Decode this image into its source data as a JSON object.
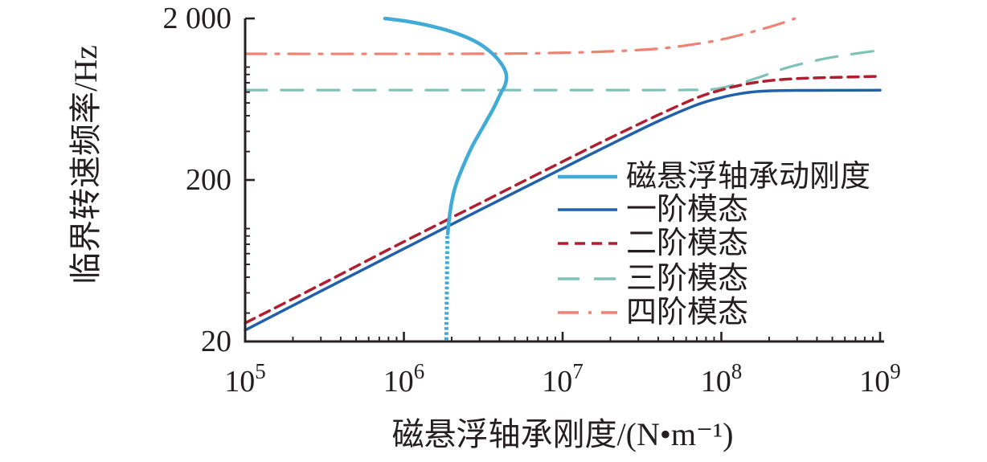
{
  "chart_data": {
    "type": "line",
    "title": "",
    "xlabel": "磁悬浮轴承刚度/(N•m⁻¹)",
    "ylabel": "临界转速频率/Hz",
    "grid": false,
    "legend_position": "center-right, no frame",
    "x_axis": {
      "scale": "log",
      "min": 100000.0,
      "max": 1000000000.0,
      "ticks": [
        {
          "value": 100000.0,
          "base": "10",
          "exp": "5"
        },
        {
          "value": 1000000.0,
          "base": "10",
          "exp": "6"
        },
        {
          "value": 10000000.0,
          "base": "10",
          "exp": "7"
        },
        {
          "value": 100000000.0,
          "base": "10",
          "exp": "8"
        },
        {
          "value": 1000000000.0,
          "base": "10",
          "exp": "9"
        }
      ]
    },
    "y_axis": {
      "scale": "log",
      "min": 20,
      "max": 2000,
      "ticks": [
        {
          "value": 2000,
          "label": "2 000"
        },
        {
          "value": 200,
          "label": "200"
        },
        {
          "value": 20,
          "label": "20"
        }
      ]
    },
    "axis_color": "#262223",
    "series": [
      {
        "id": "mode-4",
        "name": "四阶模态",
        "color": "#EF8272",
        "style": "dash-dot",
        "width": 3.2,
        "points": [
          [
            100000.0,
            1208
          ],
          [
            3000000.0,
            1209
          ],
          [
            10000000.0,
            1228
          ],
          [
            20000000.0,
            1252
          ],
          [
            40000000.0,
            1300
          ],
          [
            70000000.0,
            1392
          ],
          [
            100000000.0,
            1482
          ],
          [
            140000000.0,
            1606
          ],
          [
            190000000.0,
            1745
          ],
          [
            240000000.0,
            1872
          ],
          [
            290000000.0,
            1998
          ]
        ]
      },
      {
        "id": "mode-3",
        "name": "三阶模态",
        "color": "#7FC2B8",
        "style": "long-dash",
        "width": 3.2,
        "points": [
          [
            100000.0,
            721
          ],
          [
            30000000.0,
            721
          ],
          [
            60000000.0,
            722
          ],
          [
            90000000.0,
            730
          ],
          [
            130000000.0,
            792
          ],
          [
            180000000.0,
            876
          ],
          [
            260000000.0,
            992
          ],
          [
            400000000.0,
            1102
          ],
          [
            600000000.0,
            1185
          ],
          [
            1000000000.0,
            1272
          ]
        ]
      },
      {
        "id": "mode-2",
        "name": "二阶模态",
        "color": "#B01F2F",
        "style": "dashed",
        "width": 3.5,
        "points": [
          [
            100000.0,
            26
          ],
          [
            300000.0,
            45
          ],
          [
            1000000.0,
            83
          ],
          [
            3000000.0,
            143
          ],
          [
            10000000.0,
            260
          ],
          [
            20000000.0,
            365
          ],
          [
            40000000.0,
            505
          ],
          [
            70000000.0,
            645
          ],
          [
            100000000.0,
            722
          ],
          [
            140000000.0,
            782
          ],
          [
            200000000.0,
            824
          ],
          [
            300000000.0,
            849
          ],
          [
            500000000.0,
            863
          ],
          [
            1000000000.0,
            877
          ]
        ]
      },
      {
        "id": "mode-1",
        "name": "一阶模态",
        "color": "#2161AB",
        "style": "solid",
        "width": 3.5,
        "points": [
          [
            100000.0,
            23.5
          ],
          [
            300000.0,
            41
          ],
          [
            1000000.0,
            75
          ],
          [
            3000000.0,
            130
          ],
          [
            10000000.0,
            236
          ],
          [
            20000000.0,
            332
          ],
          [
            40000000.0,
            462
          ],
          [
            70000000.0,
            584
          ],
          [
            100000000.0,
            648
          ],
          [
            135000000.0,
            688
          ],
          [
            170000000.0,
            706
          ],
          [
            220000000.0,
            714
          ],
          [
            300000000.0,
            717
          ],
          [
            500000000.0,
            718
          ],
          [
            1000000000.0,
            719
          ]
        ]
      },
      {
        "id": "dynamic-stiffness",
        "name": "磁悬浮轴承动刚度",
        "color": "#41ABD7",
        "style": "solid",
        "width": 4.5,
        "points": [
          [
            760000.0,
            2000
          ],
          [
            1050000.0,
            1920
          ],
          [
            1500000.0,
            1790
          ],
          [
            2100000.0,
            1630
          ],
          [
            2900000.0,
            1420
          ],
          [
            3600000.0,
            1215
          ],
          [
            4150000.0,
            1035
          ],
          [
            4420000.0,
            895
          ],
          [
            4350000.0,
            780
          ],
          [
            4050000.0,
            680
          ],
          [
            3650000.0,
            550
          ],
          [
            3150000.0,
            425
          ],
          [
            2700000.0,
            325
          ],
          [
            2380000.0,
            248
          ],
          [
            2130000.0,
            188
          ],
          [
            2000000.0,
            146
          ],
          [
            1930000.0,
            115
          ],
          [
            1890000.0,
            93
          ]
        ],
        "tail": {
          "style": "dotted",
          "points": [
            [
              1880000.0,
              90
            ],
            [
              1850000.0,
              20
            ]
          ]
        }
      }
    ],
    "legend_order": [
      "dynamic-stiffness",
      "mode-1",
      "mode-2",
      "mode-3",
      "mode-4"
    ]
  }
}
